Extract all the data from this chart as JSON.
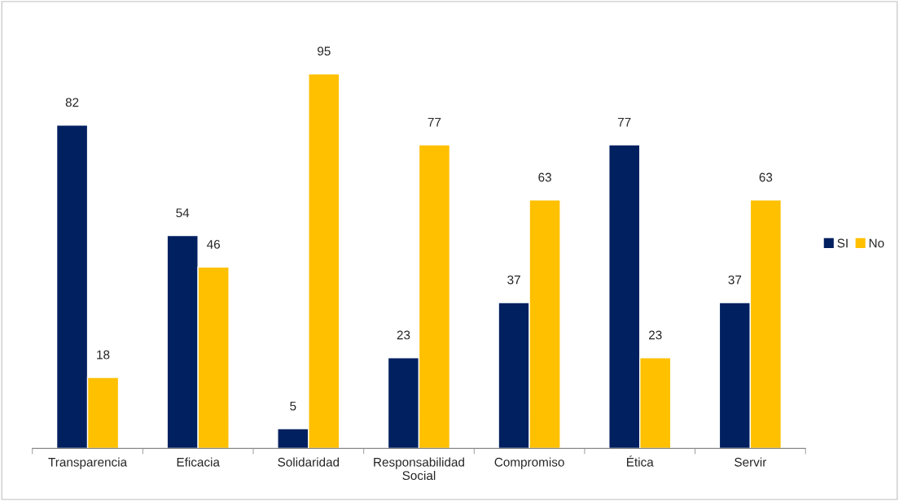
{
  "chart_data": {
    "type": "bar",
    "categories": [
      "Transparencia",
      "Eficacia",
      "Solidaridad",
      "Responsabilidad\nSocial",
      "Compromiso",
      "Ética",
      "Servir"
    ],
    "series": [
      {
        "name": "SI",
        "color": "#002060",
        "values": [
          82,
          54,
          5,
          23,
          37,
          77,
          37
        ]
      },
      {
        "name": "No",
        "color": "#ffc000",
        "values": [
          18,
          46,
          95,
          77,
          63,
          23,
          63
        ]
      }
    ],
    "data_labels": true,
    "legend": "right",
    "grid": false
  }
}
